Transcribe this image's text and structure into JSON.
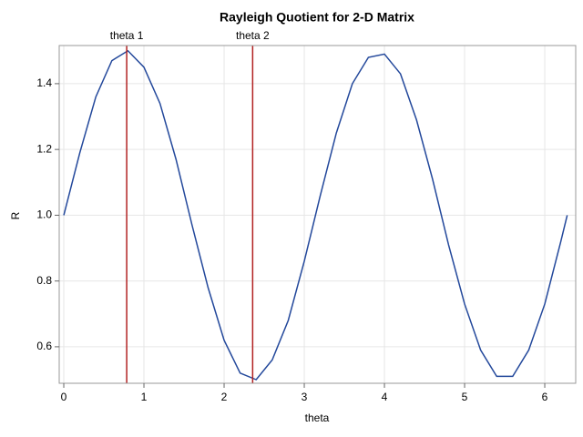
{
  "chart_data": {
    "type": "line",
    "title": "Rayleigh Quotient for 2-D Matrix",
    "x_label": "theta",
    "y_label": "R",
    "x": [
      0,
      0.2,
      0.4,
      0.6,
      0.8,
      1.0,
      1.2,
      1.4,
      1.6,
      1.8,
      2.0,
      2.2,
      2.4,
      2.6,
      2.8,
      3.0,
      3.2,
      3.4,
      3.6,
      3.8,
      4.0,
      4.2,
      4.4,
      4.6,
      4.8,
      5.0,
      5.2,
      5.4,
      5.6,
      5.8,
      6.0,
      6.2,
      6.28
    ],
    "values": [
      1.0,
      1.19,
      1.36,
      1.47,
      1.5,
      1.45,
      1.34,
      1.17,
      0.97,
      0.78,
      0.62,
      0.52,
      0.5,
      0.56,
      0.68,
      0.86,
      1.06,
      1.25,
      1.4,
      1.48,
      1.49,
      1.43,
      1.29,
      1.11,
      0.91,
      0.73,
      0.59,
      0.51,
      0.51,
      0.59,
      0.73,
      0.92,
      1.0
    ],
    "color": "#23489b",
    "reference_lines": [
      {
        "label": "theta 1",
        "x": 0.785,
        "color": "#b22222"
      },
      {
        "label": "theta 2",
        "x": 2.356,
        "color": "#b22222"
      }
    ],
    "xlim": [
      -0.057,
      6.386
    ],
    "ylim": [
      0.489,
      1.516
    ],
    "xticks": [
      0,
      1,
      2,
      3,
      4,
      5,
      6
    ],
    "yticks": [
      0.6,
      0.8,
      {
        "value": 1.0,
        "label": "1.0"
      },
      1.2,
      1.4
    ],
    "grid": true
  }
}
